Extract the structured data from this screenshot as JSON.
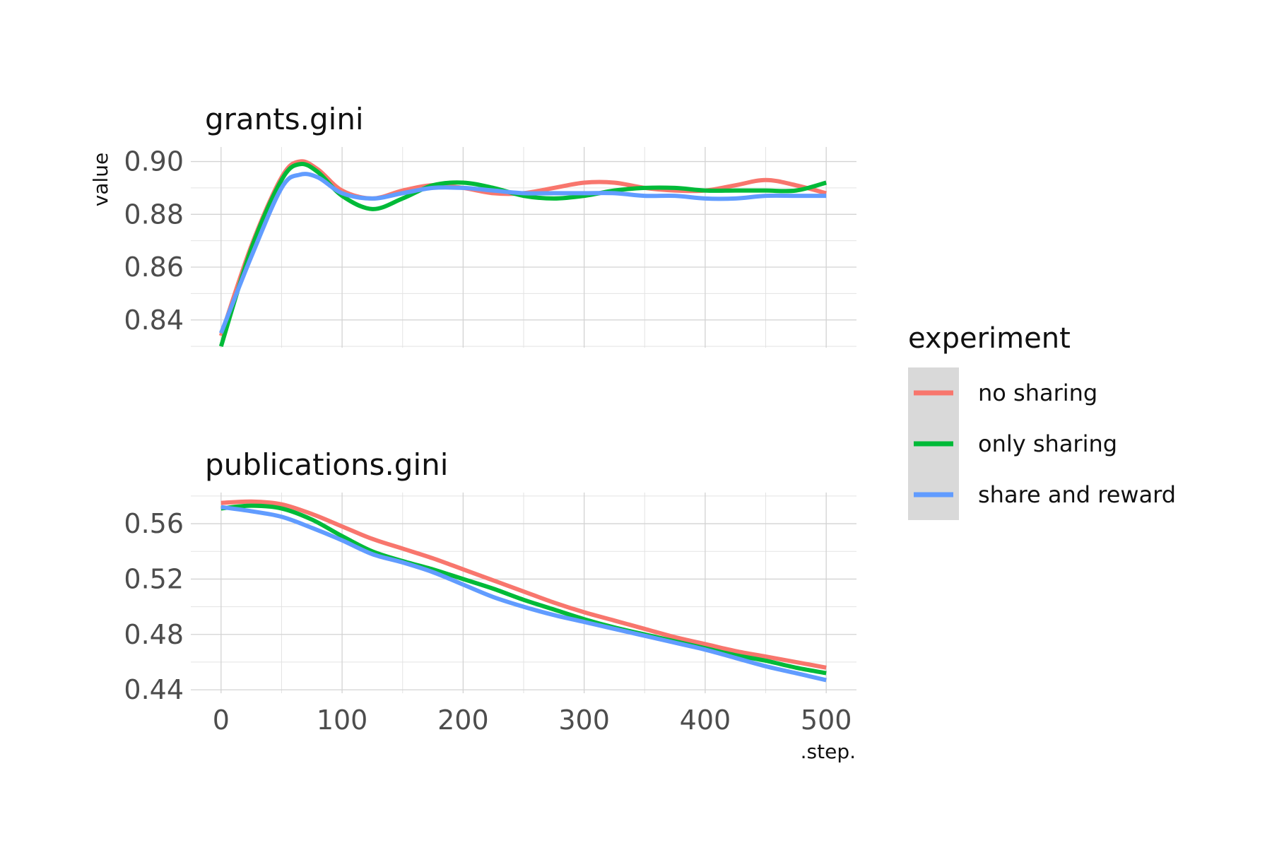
{
  "chart_data": {
    "type": "line",
    "ylabel": "value",
    "xlabel": ".step.",
    "legend": {
      "title": "experiment",
      "placement": "right",
      "entries": [
        "no sharing",
        "only sharing",
        "share and reward"
      ]
    },
    "colors": {
      "no sharing": "#F8766D",
      "only sharing": "#00BA38",
      "share and reward": "#619CFF"
    },
    "x_ticks": [
      0,
      100,
      200,
      300,
      400,
      500
    ],
    "xlim": [
      -25,
      525
    ],
    "grid": true,
    "facets": [
      {
        "title": "grants.gini",
        "ylim": [
          0.8295,
          0.9055
        ],
        "y_ticks": [
          0.84,
          0.86,
          0.88,
          0.9
        ],
        "y_tick_labels": [
          "0.84",
          "0.86",
          "0.88",
          "0.90"
        ],
        "x": [
          0,
          25,
          50,
          65,
          80,
          100,
          125,
          150,
          175,
          200,
          225,
          250,
          275,
          300,
          325,
          350,
          375,
          400,
          425,
          450,
          475,
          500
        ],
        "series": [
          {
            "name": "no sharing",
            "values": [
              0.834,
              0.868,
              0.894,
              0.9,
              0.897,
              0.889,
              0.886,
              0.889,
              0.891,
              0.89,
              0.888,
              0.888,
              0.89,
              0.892,
              0.892,
              0.89,
              0.889,
              0.889,
              0.891,
              0.893,
              0.891,
              0.888
            ]
          },
          {
            "name": "only sharing",
            "values": [
              0.83,
              0.867,
              0.893,
              0.899,
              0.896,
              0.887,
              0.882,
              0.886,
              0.891,
              0.892,
              0.89,
              0.887,
              0.886,
              0.887,
              0.889,
              0.89,
              0.89,
              0.889,
              0.889,
              0.889,
              0.889,
              0.892
            ]
          },
          {
            "name": "share and reward",
            "values": [
              0.835,
              0.864,
              0.89,
              0.895,
              0.894,
              0.888,
              0.886,
              0.888,
              0.89,
              0.89,
              0.889,
              0.888,
              0.888,
              0.888,
              0.888,
              0.887,
              0.887,
              0.886,
              0.886,
              0.887,
              0.887,
              0.887
            ]
          }
        ]
      },
      {
        "title": "publications.gini",
        "ylim": [
          0.4375,
          0.5825
        ],
        "y_ticks": [
          0.44,
          0.48,
          0.52,
          0.56
        ],
        "y_tick_labels": [
          "0.44",
          "0.48",
          "0.52",
          "0.56"
        ],
        "x": [
          0,
          25,
          50,
          75,
          100,
          125,
          150,
          175,
          200,
          225,
          250,
          275,
          300,
          325,
          350,
          375,
          400,
          425,
          450,
          475,
          500
        ],
        "series": [
          {
            "name": "no sharing",
            "values": [
              0.575,
              0.576,
              0.574,
              0.567,
              0.558,
              0.549,
              0.542,
              0.535,
              0.527,
              0.519,
              0.511,
              0.503,
              0.496,
              0.49,
              0.484,
              0.478,
              0.473,
              0.468,
              0.464,
              0.46,
              0.456
            ]
          },
          {
            "name": "only sharing",
            "values": [
              0.571,
              0.573,
              0.571,
              0.563,
              0.551,
              0.54,
              0.533,
              0.527,
              0.52,
              0.513,
              0.505,
              0.498,
              0.491,
              0.485,
              0.48,
              0.475,
              0.47,
              0.465,
              0.461,
              0.456,
              0.452
            ]
          },
          {
            "name": "share and reward",
            "values": [
              0.572,
              0.569,
              0.565,
              0.557,
              0.548,
              0.538,
              0.532,
              0.525,
              0.516,
              0.507,
              0.5,
              0.494,
              0.489,
              0.484,
              0.479,
              0.474,
              0.469,
              0.463,
              0.457,
              0.452,
              0.447
            ]
          }
        ]
      }
    ]
  }
}
